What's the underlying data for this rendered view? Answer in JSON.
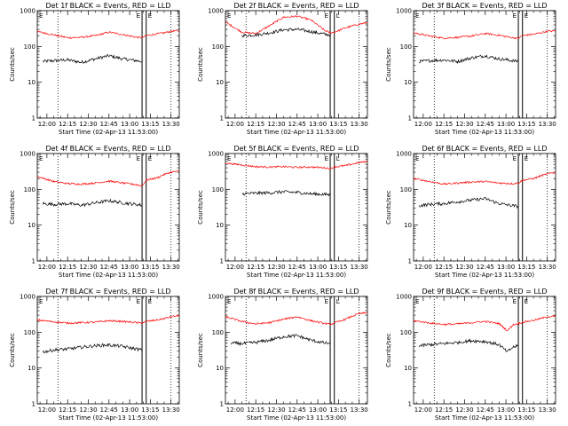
{
  "figure": {
    "background": "#ffffff",
    "events_color": "#000000",
    "lld_color": "#ff0000"
  },
  "chart_data": [
    {
      "type": "line",
      "detector": "Det 1f",
      "title": "Det 1f BLACK = Events, RED = LLD",
      "xlabel": "Start Time (02-Apr-13 11:53:00)",
      "ylabel": "Counts/sec",
      "xlim": [
        "11:53",
        "13:36"
      ],
      "ylim": [
        1,
        1000
      ],
      "ylog": true,
      "xtick_labels": [
        "12:00",
        "12:15",
        "12:30",
        "12:45",
        "13:00",
        "13:15",
        "13:30"
      ],
      "ytick_labels": [
        "1",
        "10",
        "100",
        "1000"
      ],
      "vlines_dotted": [
        "12:08",
        "13:30"
      ],
      "vlines_solid": [
        "13:09",
        "13:12"
      ],
      "markers": [
        "E",
        "E"
      ],
      "series": [
        {
          "name": "Events",
          "color": "#000000",
          "x": [
            "11:57",
            "12:05",
            "12:15",
            "12:25",
            "12:35",
            "12:45",
            "12:55",
            "13:05",
            "13:09"
          ],
          "y": [
            38,
            40,
            42,
            36,
            45,
            55,
            45,
            40,
            38
          ]
        },
        {
          "name": "LLD",
          "color": "#ff0000",
          "x": [
            "11:53",
            "12:05",
            "12:15",
            "12:25",
            "12:35",
            "12:45",
            "12:55",
            "13:05",
            "13:09",
            "13:12",
            "13:20",
            "13:25",
            "13:30",
            "13:36"
          ],
          "y": [
            260,
            210,
            175,
            180,
            200,
            250,
            215,
            180,
            175,
            200,
            225,
            240,
            265,
            275
          ]
        }
      ]
    },
    {
      "type": "line",
      "detector": "Det 2f",
      "title": "Det 2f BLACK = Events, RED = LLD",
      "xlabel": "Start Time (02-Apr-13 11:53:00)",
      "ylabel": "Counts/sec",
      "xlim": [
        "11:53",
        "13:36"
      ],
      "ylim": [
        1,
        1000
      ],
      "ylog": true,
      "xtick_labels": [
        "12:00",
        "12:15",
        "12:30",
        "12:45",
        "13:00",
        "13:15",
        "13:30"
      ],
      "ytick_labels": [
        "1",
        "10",
        "100",
        "1000"
      ],
      "vlines_dotted": [
        "12:08",
        "13:30"
      ],
      "vlines_solid": [
        "13:09",
        "13:12"
      ],
      "markers": [
        "E",
        "L"
      ],
      "series": [
        {
          "name": "Events",
          "color": "#000000",
          "x": [
            "12:05",
            "12:15",
            "12:25",
            "12:35",
            "12:45",
            "12:55",
            "13:05",
            "13:09"
          ],
          "y": [
            200,
            210,
            240,
            290,
            300,
            260,
            220,
            210
          ]
        },
        {
          "name": "LLD",
          "color": "#ff0000",
          "x": [
            "11:53",
            "12:05",
            "12:15",
            "12:25",
            "12:35",
            "12:45",
            "12:55",
            "13:05",
            "13:09",
            "13:12",
            "13:20",
            "13:30",
            "13:36"
          ],
          "y": [
            480,
            250,
            230,
            380,
            650,
            700,
            550,
            280,
            240,
            250,
            330,
            420,
            460
          ]
        }
      ]
    },
    {
      "type": "line",
      "detector": "Det 3f",
      "title": "Det 3f BLACK = Events, RED = LLD",
      "xlabel": "Start Time (02-Apr-13 11:53:00)",
      "ylabel": "Counts/sec",
      "xlim": [
        "11:53",
        "13:36"
      ],
      "ylim": [
        1,
        1000
      ],
      "ylog": true,
      "xtick_labels": [
        "12:00",
        "12:15",
        "12:30",
        "12:45",
        "13:00",
        "13:15",
        "13:30"
      ],
      "ytick_labels": [
        "1",
        "10",
        "100",
        "1000"
      ],
      "vlines_dotted": [
        "12:08",
        "13:30"
      ],
      "vlines_solid": [
        "13:09",
        "13:12"
      ],
      "markers": [
        "E",
        "E"
      ],
      "series": [
        {
          "name": "Events",
          "color": "#000000",
          "x": [
            "11:57",
            "12:05",
            "12:15",
            "12:25",
            "12:35",
            "12:45",
            "12:55",
            "13:05",
            "13:09"
          ],
          "y": [
            38,
            40,
            42,
            38,
            48,
            55,
            45,
            40,
            38
          ]
        },
        {
          "name": "LLD",
          "color": "#ff0000",
          "x": [
            "11:53",
            "12:05",
            "12:15",
            "12:25",
            "12:35",
            "12:45",
            "12:55",
            "13:05",
            "13:09",
            "13:12",
            "13:20",
            "13:25",
            "13:30",
            "13:36"
          ],
          "y": [
            240,
            195,
            170,
            180,
            195,
            230,
            205,
            175,
            170,
            200,
            220,
            240,
            265,
            270
          ]
        }
      ]
    },
    {
      "type": "line",
      "detector": "Det 4f",
      "title": "Det 4f BLACK = Events, RED = LLD",
      "xlabel": "Start Time (02-Apr-13 11:53:00)",
      "ylabel": "Counts/sec",
      "xlim": [
        "11:53",
        "13:36"
      ],
      "ylim": [
        1,
        1000
      ],
      "ylog": true,
      "xtick_labels": [
        "12:00",
        "12:15",
        "12:30",
        "12:45",
        "13:00",
        "13:15",
        "13:30"
      ],
      "ytick_labels": [
        "1",
        "10",
        "100",
        "1000"
      ],
      "vlines_dotted": [
        "12:08",
        "13:30"
      ],
      "vlines_solid": [
        "13:09",
        "13:12"
      ],
      "markers": [
        "E",
        "E"
      ],
      "series": [
        {
          "name": "Events",
          "color": "#000000",
          "x": [
            "11:57",
            "12:05",
            "12:15",
            "12:25",
            "12:35",
            "12:45",
            "12:55",
            "13:05",
            "13:09"
          ],
          "y": [
            40,
            38,
            40,
            36,
            42,
            48,
            42,
            38,
            36
          ]
        },
        {
          "name": "LLD",
          "color": "#ff0000",
          "x": [
            "11:53",
            "12:05",
            "12:15",
            "12:25",
            "12:35",
            "12:45",
            "12:55",
            "13:05",
            "13:09",
            "13:12",
            "13:20",
            "13:25",
            "13:30",
            "13:36"
          ],
          "y": [
            230,
            165,
            145,
            140,
            150,
            170,
            150,
            135,
            125,
            180,
            210,
            260,
            300,
            320
          ]
        }
      ]
    },
    {
      "type": "line",
      "detector": "Det 5f",
      "title": "Det 5f BLACK = Events, RED = LLD",
      "xlabel": "Start Time (02-Apr-13 11:53:00)",
      "ylabel": "Counts/sec",
      "xlim": [
        "11:53",
        "13:36"
      ],
      "ylim": [
        1,
        1000
      ],
      "ylog": true,
      "xtick_labels": [
        "12:00",
        "12:15",
        "12:30",
        "12:45",
        "13:00",
        "13:15",
        "13:30"
      ],
      "ytick_labels": [
        "1",
        "10",
        "100",
        "1000"
      ],
      "vlines_dotted": [
        "12:08",
        "13:30"
      ],
      "vlines_solid": [
        "13:09",
        "13:12"
      ],
      "markers": [
        "E",
        "L"
      ],
      "series": [
        {
          "name": "Events",
          "color": "#000000",
          "x": [
            "12:05",
            "12:15",
            "12:25",
            "12:35",
            "12:45",
            "12:55",
            "13:05",
            "13:09"
          ],
          "y": [
            75,
            78,
            80,
            85,
            82,
            75,
            72,
            70
          ]
        },
        {
          "name": "LLD",
          "color": "#ff0000",
          "x": [
            "11:53",
            "12:05",
            "12:15",
            "12:25",
            "12:35",
            "12:45",
            "12:55",
            "13:05",
            "13:09",
            "13:12",
            "13:20",
            "13:30",
            "13:36"
          ],
          "y": [
            540,
            480,
            430,
            420,
            430,
            410,
            420,
            400,
            380,
            420,
            460,
            560,
            600
          ]
        }
      ]
    },
    {
      "type": "line",
      "detector": "Det 6f",
      "title": "Det 6f BLACK = Events, RED = LLD",
      "xlabel": "Start Time (02-Apr-13 11:53:00)",
      "ylabel": "Counts/sec",
      "xlim": [
        "11:53",
        "13:36"
      ],
      "ylim": [
        1,
        1000
      ],
      "ylog": true,
      "xtick_labels": [
        "12:00",
        "12:15",
        "12:30",
        "12:45",
        "13:00",
        "13:15",
        "13:30"
      ],
      "ytick_labels": [
        "1",
        "10",
        "100",
        "1000"
      ],
      "vlines_dotted": [
        "12:08",
        "13:30"
      ],
      "vlines_solid": [
        "13:09",
        "13:12"
      ],
      "markers": [
        "E",
        "E"
      ],
      "series": [
        {
          "name": "Events",
          "color": "#000000",
          "x": [
            "11:57",
            "12:05",
            "12:15",
            "12:25",
            "12:35",
            "12:45",
            "12:55",
            "13:05",
            "13:09"
          ],
          "y": [
            35,
            38,
            40,
            45,
            50,
            55,
            40,
            35,
            33
          ]
        },
        {
          "name": "LLD",
          "color": "#ff0000",
          "x": [
            "11:53",
            "12:05",
            "12:15",
            "12:25",
            "12:35",
            "12:45",
            "12:55",
            "13:05",
            "13:09",
            "13:12",
            "13:20",
            "13:25",
            "13:30",
            "13:36"
          ],
          "y": [
            200,
            165,
            140,
            150,
            160,
            165,
            150,
            145,
            150,
            180,
            200,
            235,
            270,
            300
          ]
        }
      ]
    },
    {
      "type": "line",
      "detector": "Det 7f",
      "title": "Det 7f BLACK = Events, RED = LLD",
      "xlabel": "Start Time (02-Apr-13 11:53:00)",
      "ylabel": "Counts/sec",
      "xlim": [
        "11:53",
        "13:36"
      ],
      "ylim": [
        1,
        1000
      ],
      "ylog": true,
      "xtick_labels": [
        "12:00",
        "12:15",
        "12:30",
        "12:45",
        "13:00",
        "13:15",
        "13:30"
      ],
      "ytick_labels": [
        "1",
        "10",
        "100",
        "1000"
      ],
      "vlines_dotted": [
        "12:08",
        "13:30"
      ],
      "vlines_solid": [
        "13:09",
        "13:12"
      ],
      "markers": [
        "E",
        "E"
      ],
      "series": [
        {
          "name": "Events",
          "color": "#000000",
          "x": [
            "11:57",
            "12:05",
            "12:15",
            "12:25",
            "12:35",
            "12:45",
            "12:55",
            "13:05",
            "13:09"
          ],
          "y": [
            28,
            32,
            34,
            38,
            42,
            44,
            40,
            34,
            32
          ]
        },
        {
          "name": "LLD",
          "color": "#ff0000",
          "x": [
            "11:53",
            "12:05",
            "12:15",
            "12:25",
            "12:35",
            "12:45",
            "12:55",
            "13:05",
            "13:09",
            "13:12",
            "13:20",
            "13:25",
            "13:30",
            "13:36"
          ],
          "y": [
            220,
            195,
            180,
            185,
            190,
            210,
            200,
            185,
            180,
            200,
            220,
            240,
            270,
            290
          ]
        }
      ]
    },
    {
      "type": "line",
      "detector": "Det 8f",
      "title": "Det 8f BLACK = Events, RED = LLD",
      "xlabel": "Start Time (02-Apr-13 11:53:00)",
      "ylabel": "Counts/sec",
      "xlim": [
        "11:53",
        "13:36"
      ],
      "ylim": [
        1,
        1000
      ],
      "ylog": true,
      "xtick_labels": [
        "12:00",
        "12:15",
        "12:30",
        "12:45",
        "13:00",
        "13:15",
        "13:30"
      ],
      "ytick_labels": [
        "1",
        "10",
        "100",
        "1000"
      ],
      "vlines_dotted": [
        "12:08",
        "13:30"
      ],
      "vlines_solid": [
        "13:09",
        "13:12"
      ],
      "markers": [
        "E",
        "L"
      ],
      "series": [
        {
          "name": "Events",
          "color": "#000000",
          "x": [
            "11:57",
            "12:05",
            "12:15",
            "12:25",
            "12:35",
            "12:45",
            "12:55",
            "13:05",
            "13:09"
          ],
          "y": [
            50,
            48,
            52,
            60,
            75,
            80,
            60,
            50,
            48
          ]
        },
        {
          "name": "LLD",
          "color": "#ff0000",
          "x": [
            "11:53",
            "12:05",
            "12:15",
            "12:25",
            "12:35",
            "12:45",
            "12:55",
            "13:05",
            "13:09",
            "13:12",
            "13:20",
            "13:25",
            "13:30",
            "13:36"
          ],
          "y": [
            270,
            200,
            170,
            185,
            230,
            270,
            210,
            175,
            165,
            180,
            230,
            280,
            330,
            350
          ]
        }
      ]
    },
    {
      "type": "line",
      "detector": "Det 9f",
      "title": "Det 9f BLACK = Events, RED = LLD",
      "xlabel": "Start Time (02-Apr-13 11:53:00)",
      "ylabel": "Counts/sec",
      "xlim": [
        "11:53",
        "13:36"
      ],
      "ylim": [
        1,
        1000
      ],
      "ylog": true,
      "xtick_labels": [
        "12:00",
        "12:15",
        "12:30",
        "12:45",
        "13:00",
        "13:15",
        "13:30"
      ],
      "ytick_labels": [
        "1",
        "10",
        "100",
        "1000"
      ],
      "vlines_dotted": [
        "12:08",
        "13:30"
      ],
      "vlines_solid": [
        "13:09",
        "13:12"
      ],
      "markers": [
        "E",
        "E"
      ],
      "series": [
        {
          "name": "Events",
          "color": "#000000",
          "x": [
            "11:57",
            "12:05",
            "12:15",
            "12:25",
            "12:35",
            "12:45",
            "12:55",
            "13:01",
            "13:05",
            "13:09"
          ],
          "y": [
            42,
            45,
            48,
            52,
            58,
            55,
            45,
            28,
            38,
            42
          ]
        },
        {
          "name": "LLD",
          "color": "#ff0000",
          "x": [
            "11:53",
            "12:05",
            "12:15",
            "12:25",
            "12:35",
            "12:45",
            "12:55",
            "13:01",
            "13:05",
            "13:09",
            "13:12",
            "13:20",
            "13:25",
            "13:30",
            "13:36"
          ],
          "y": [
            210,
            180,
            165,
            170,
            185,
            200,
            175,
            110,
            160,
            175,
            190,
            215,
            240,
            270,
            280
          ]
        }
      ]
    }
  ]
}
